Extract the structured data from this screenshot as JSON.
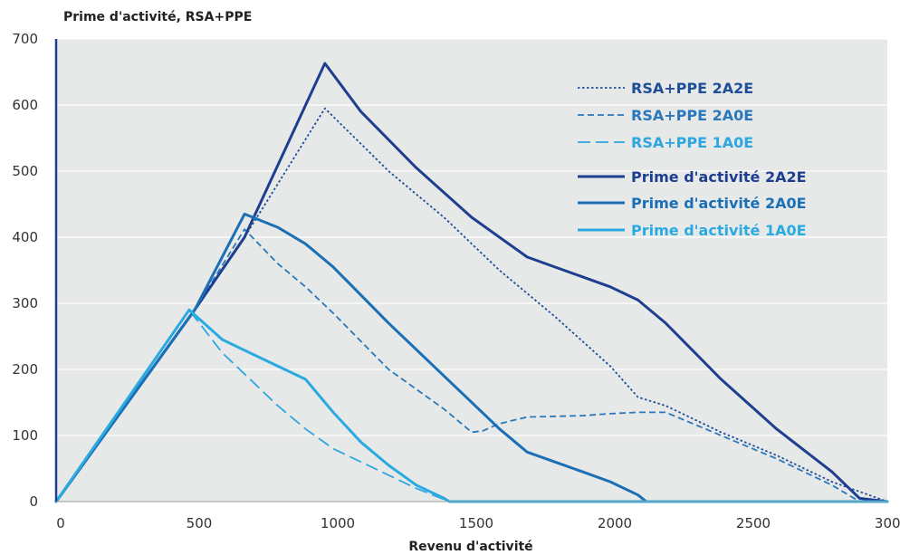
{
  "chart_data": {
    "type": "line",
    "title": "",
    "ylabel": "Prime d'activité, RSA+PPE",
    "xlabel": "Revenu d'activité",
    "xlim": [
      0,
      3000
    ],
    "ylim": [
      0,
      700
    ],
    "xticks": [
      "0",
      "500",
      "1000",
      "1500",
      "2000",
      "2500",
      "3000"
    ],
    "yticks": [
      "0",
      "100",
      "200",
      "300",
      "400",
      "500",
      "600",
      "700"
    ],
    "grid": "horizontal",
    "legend_position": "top-right",
    "series": [
      {
        "name": "RSA+PPE 2A2E",
        "style": "dotted",
        "color": "#1e4e9a",
        "x": [
          0,
          500,
          680,
          970,
          1200,
          1400,
          1600,
          1800,
          2000,
          2100,
          2200,
          2400,
          2600,
          2800,
          3000
        ],
        "y": [
          0,
          290,
          400,
          595,
          500,
          430,
          350,
          280,
          205,
          158,
          145,
          105,
          70,
          30,
          0
        ]
      },
      {
        "name": "RSA+PPE 2A0E",
        "style": "dashed",
        "color": "#2a78bb",
        "x": [
          0,
          500,
          680,
          800,
          900,
          1000,
          1200,
          1400,
          1500,
          1540,
          1600,
          1700,
          1900,
          2000,
          2100,
          2200,
          2400,
          2600,
          2800,
          2900
        ],
        "y": [
          0,
          290,
          412,
          360,
          325,
          285,
          200,
          140,
          105,
          107,
          118,
          128,
          130,
          133,
          135,
          135,
          100,
          65,
          25,
          0
        ]
      },
      {
        "name": "RSA+PPE 1A0E",
        "style": "longdash",
        "color": "#2ea6e0",
        "x": [
          0,
          480,
          600,
          700,
          800,
          900,
          1000,
          1100,
          1200,
          1300,
          1420
        ],
        "y": [
          0,
          290,
          225,
          185,
          145,
          110,
          80,
          60,
          40,
          20,
          0
        ]
      },
      {
        "name": "Prime d'activité 2A2E",
        "style": "solid",
        "color": "#1e3f8f",
        "x": [
          0,
          500,
          680,
          970,
          1100,
          1300,
          1500,
          1700,
          1800,
          1900,
          2000,
          2100,
          2200,
          2400,
          2600,
          2800,
          2900,
          3000
        ],
        "y": [
          0,
          290,
          400,
          663,
          590,
          505,
          430,
          370,
          355,
          340,
          325,
          305,
          270,
          185,
          110,
          45,
          5,
          0
        ]
      },
      {
        "name": "Prime d'activité 2A0E",
        "style": "solid",
        "color": "#1a6fb5",
        "x": [
          0,
          500,
          680,
          800,
          900,
          1000,
          1200,
          1400,
          1600,
          1700,
          1800,
          1900,
          2000,
          2100,
          2130,
          3000
        ],
        "y": [
          0,
          290,
          435,
          415,
          390,
          355,
          270,
          190,
          110,
          75,
          60,
          45,
          30,
          10,
          0,
          0
        ]
      },
      {
        "name": "Prime d'activité 1A0E",
        "style": "solid",
        "color": "#29abe2",
        "x": [
          0,
          480,
          600,
          700,
          800,
          900,
          1000,
          1100,
          1200,
          1300,
          1400,
          1420,
          3000
        ],
        "y": [
          0,
          290,
          245,
          225,
          205,
          185,
          135,
          90,
          55,
          25,
          5,
          0,
          0
        ]
      }
    ]
  }
}
